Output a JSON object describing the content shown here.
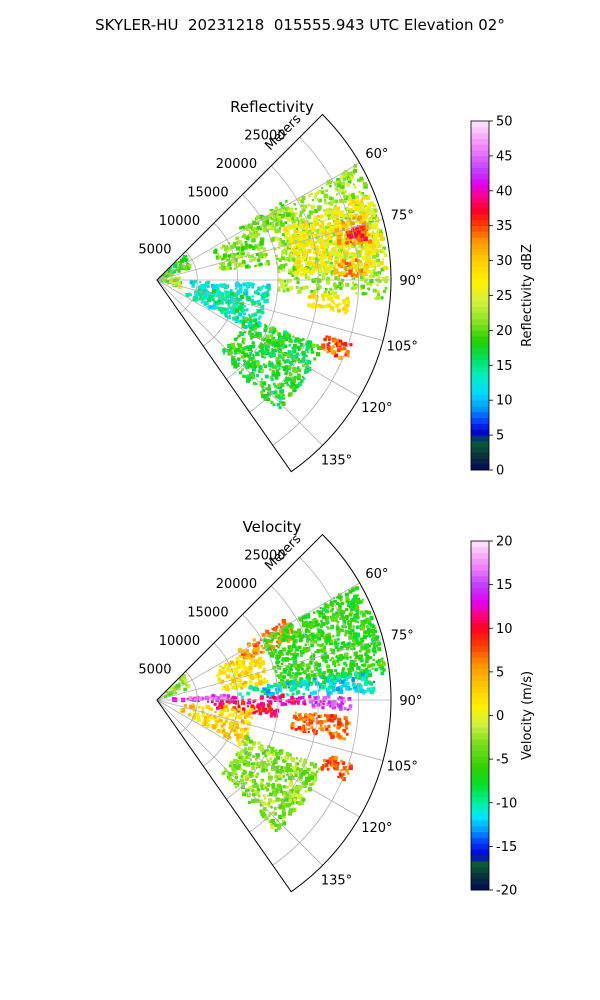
{
  "suptitle": "SKYLER-HU  20231218  015555.943 UTC Elevation 02°",
  "chart_data": [
    {
      "type": "heatmap",
      "projection": "polar-sector",
      "title": "Reflectivity",
      "range_label": "Meters",
      "range_ticks": [
        5000,
        10000,
        15000,
        20000,
        25000
      ],
      "range_max": 29000,
      "azimuth_ticks_deg": [
        60,
        75,
        90,
        105,
        120,
        135
      ],
      "azimuth_range_deg": [
        45,
        145
      ],
      "grid": true,
      "colorbar": {
        "label": "Reflectivity dBZ",
        "min": 0,
        "max": 50,
        "ticks": [
          0,
          5,
          10,
          15,
          20,
          25,
          30,
          35,
          40,
          45,
          50
        ],
        "stops": [
          {
            "v": 0,
            "c": "#03075a"
          },
          {
            "v": 2,
            "c": "#0b2f3a"
          },
          {
            "v": 4,
            "c": "#0a5a3a"
          },
          {
            "v": 5.5,
            "c": "#0000d0"
          },
          {
            "v": 7,
            "c": "#0040ff"
          },
          {
            "v": 9,
            "c": "#00a0ff"
          },
          {
            "v": 11,
            "c": "#00d8ff"
          },
          {
            "v": 13.5,
            "c": "#00f0c0"
          },
          {
            "v": 16,
            "c": "#00e060"
          },
          {
            "v": 18.5,
            "c": "#20d000"
          },
          {
            "v": 21,
            "c": "#80e020"
          },
          {
            "v": 24,
            "c": "#d0f040"
          },
          {
            "v": 27,
            "c": "#fff000"
          },
          {
            "v": 30,
            "c": "#ffd000"
          },
          {
            "v": 33,
            "c": "#ff9000"
          },
          {
            "v": 35,
            "c": "#ff4000"
          },
          {
            "v": 37,
            "c": "#ff0020"
          },
          {
            "v": 39,
            "c": "#ff0080"
          },
          {
            "v": 41,
            "c": "#e000f0"
          },
          {
            "v": 43,
            "c": "#c040ff"
          },
          {
            "v": 46,
            "c": "#f080ff"
          },
          {
            "v": 48,
            "c": "#f8b0f8"
          },
          {
            "v": 50,
            "c": "#ffe8ff"
          }
        ]
      },
      "echo_regions": [
        {
          "az": [
            48,
            70
          ],
          "r": [
            0,
            4500
          ],
          "v": 19
        },
        {
          "az": [
            62,
            82
          ],
          "r": [
            8000,
            14000
          ],
          "v": 21
        },
        {
          "az": [
            58,
            66
          ],
          "r": [
            12000,
            19000
          ],
          "v": 21
        },
        {
          "az": [
            60,
            95
          ],
          "r": [
            15000,
            28500
          ],
          "v": 22
        },
        {
          "az": [
            68,
            88
          ],
          "r": [
            17000,
            28500
          ],
          "v": 27
        },
        {
          "az": [
            72,
            80
          ],
          "r": [
            23000,
            27000
          ],
          "v": 31
        },
        {
          "az": [
            75,
            79
          ],
          "r": [
            24000,
            26500
          ],
          "v": 36
        },
        {
          "az": [
            84,
            89
          ],
          "r": [
            22000,
            26000
          ],
          "v": 32
        },
        {
          "az": [
            92,
            118
          ],
          "r": [
            4000,
            14000
          ],
          "v": 13
        },
        {
          "az": [
            100,
            112
          ],
          "r": [
            5000,
            11000
          ],
          "v": 15
        },
        {
          "az": [
            112,
            138
          ],
          "r": [
            12000,
            22000
          ],
          "v": 18
        },
        {
          "az": [
            95,
            100
          ],
          "r": [
            19000,
            24000
          ],
          "v": 28
        },
        {
          "az": [
            108,
            113
          ],
          "r": [
            22000,
            25500
          ],
          "v": 34
        },
        {
          "az": [
            85,
            110
          ],
          "r": [
            0,
            3000
          ],
          "v": 22
        }
      ]
    },
    {
      "type": "heatmap",
      "projection": "polar-sector",
      "title": "Velocity",
      "range_label": "Meters",
      "range_ticks": [
        5000,
        10000,
        15000,
        20000,
        25000
      ],
      "range_max": 29000,
      "azimuth_ticks_deg": [
        60,
        75,
        90,
        105,
        120,
        135
      ],
      "azimuth_range_deg": [
        45,
        145
      ],
      "grid": true,
      "colorbar": {
        "label": "Velocity (m/s)",
        "min": -20,
        "max": 20,
        "ticks": [
          -20,
          -15,
          -10,
          -5,
          0,
          5,
          10,
          15,
          20
        ],
        "stops": [
          {
            "v": -20,
            "c": "#03075a"
          },
          {
            "v": -18.5,
            "c": "#0b2f3a"
          },
          {
            "v": -17,
            "c": "#0a5a3a"
          },
          {
            "v": -16,
            "c": "#0000d0"
          },
          {
            "v": -14.5,
            "c": "#0040ff"
          },
          {
            "v": -13,
            "c": "#00a0ff"
          },
          {
            "v": -11.5,
            "c": "#00e8ff"
          },
          {
            "v": -10,
            "c": "#00f0a0"
          },
          {
            "v": -8,
            "c": "#00e030"
          },
          {
            "v": -6,
            "c": "#30d000"
          },
          {
            "v": -3,
            "c": "#80e020"
          },
          {
            "v": -1,
            "c": "#d0f040"
          },
          {
            "v": 1,
            "c": "#fff000"
          },
          {
            "v": 3,
            "c": "#ffd000"
          },
          {
            "v": 6,
            "c": "#ff9000"
          },
          {
            "v": 8,
            "c": "#ff4000"
          },
          {
            "v": 10,
            "c": "#ff0020"
          },
          {
            "v": 11.5,
            "c": "#ff0080"
          },
          {
            "v": 13,
            "c": "#e000f0"
          },
          {
            "v": 15,
            "c": "#c040ff"
          },
          {
            "v": 17,
            "c": "#f080ff"
          },
          {
            "v": 18.5,
            "c": "#f8b0f8"
          },
          {
            "v": 20,
            "c": "#ffe8ff"
          }
        ]
      },
      "echo_regions": [
        {
          "az": [
            48,
            70
          ],
          "r": [
            0,
            4500
          ],
          "v": -3
        },
        {
          "az": [
            62,
            82
          ],
          "r": [
            8000,
            14000
          ],
          "v": 2
        },
        {
          "az": [
            58,
            66
          ],
          "r": [
            12000,
            19000
          ],
          "v": 6
        },
        {
          "az": [
            60,
            84
          ],
          "r": [
            15000,
            28500
          ],
          "v": -6
        },
        {
          "az": [
            82,
            88
          ],
          "r": [
            10000,
            27000
          ],
          "v": -11
        },
        {
          "az": [
            88,
            92
          ],
          "r": [
            0,
            19000
          ],
          "v": 12
        },
        {
          "az": [
            89,
            93
          ],
          "r": [
            19000,
            24000
          ],
          "v": 15
        },
        {
          "az": [
            86,
            89
          ],
          "r": [
            4000,
            9000
          ],
          "v": 16
        },
        {
          "az": [
            92,
            98
          ],
          "r": [
            6000,
            15000
          ],
          "v": 10
        },
        {
          "az": [
            95,
            118
          ],
          "r": [
            3000,
            12000
          ],
          "v": 3
        },
        {
          "az": [
            112,
            138
          ],
          "r": [
            12000,
            22000
          ],
          "v": -3
        },
        {
          "az": [
            95,
            102
          ],
          "r": [
            17000,
            24000
          ],
          "v": 7
        },
        {
          "az": [
            108,
            113
          ],
          "r": [
            22000,
            25500
          ],
          "v": 7
        }
      ]
    }
  ]
}
